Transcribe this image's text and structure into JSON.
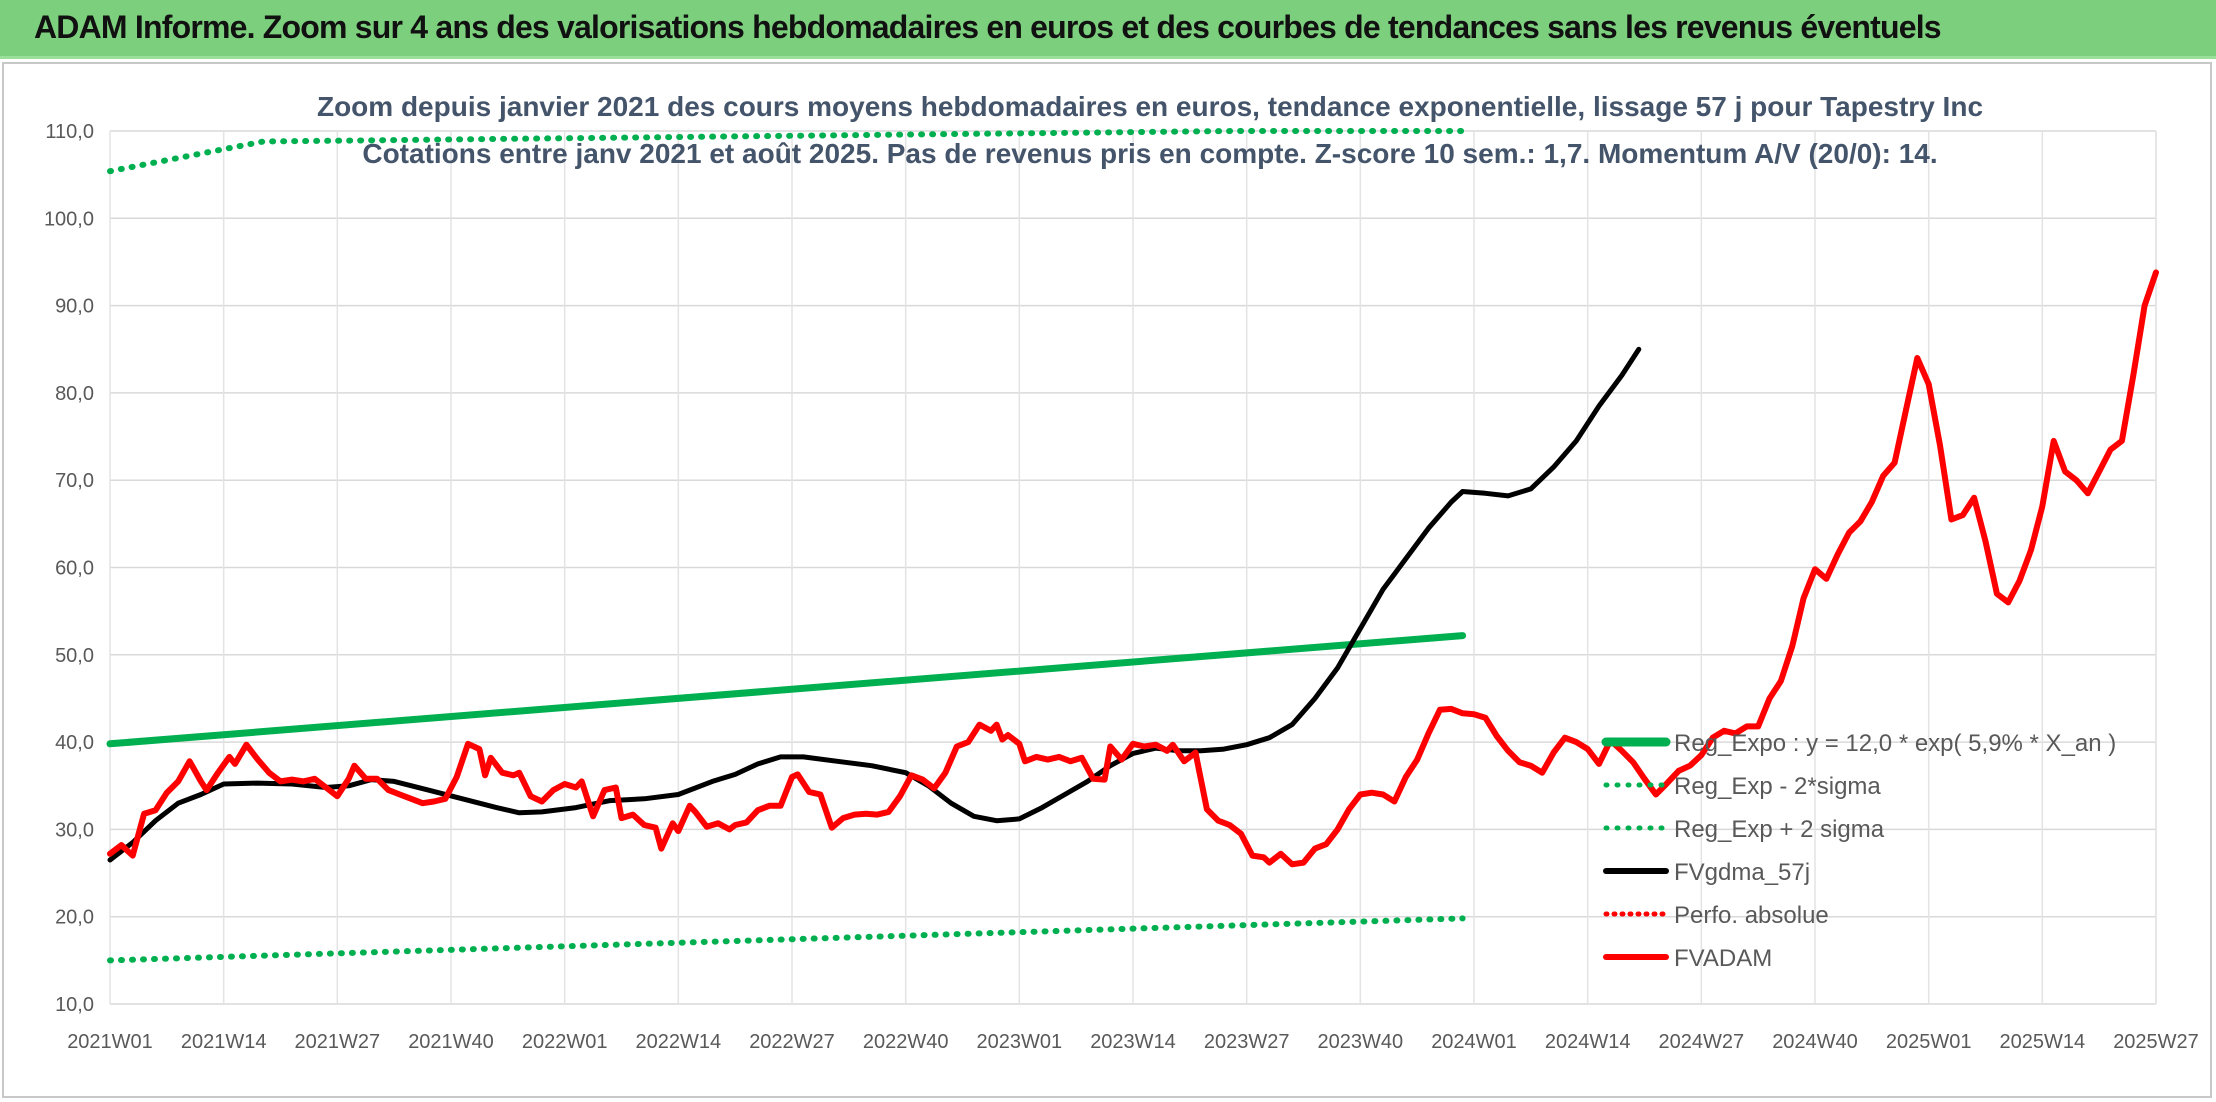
{
  "header": {
    "title": "ADAM Informe. Zoom sur 4 ans des valorisations hebdomadaires en euros et des courbes de tendances sans les revenus éventuels"
  },
  "chart_data": {
    "type": "line",
    "title_line1": "Zoom depuis janvier 2021 des cours moyens hebdomadaires en euros, tendance exponentielle, lissage 57 j pour Tapestry Inc",
    "title_line2": "Cotations entre janv 2021 et août 2025. Pas de revenus pris en compte. Z-score 10 sem.: 1,7. Momentum A/V (20/0): 14.",
    "ylim": [
      10,
      110
    ],
    "yticks": [
      "10,0",
      "20,0",
      "30,0",
      "40,0",
      "50,0",
      "60,0",
      "70,0",
      "80,0",
      "90,0",
      "100,0",
      "110,0"
    ],
    "x_tick_labels": [
      "2021W01",
      "2021W14",
      "2021W27",
      "2021W40",
      "2022W01",
      "2022W14",
      "2022W27",
      "2022W40",
      "2023W01",
      "2023W14",
      "2023W27",
      "2023W40",
      "2024W01",
      "2024W14",
      "2024W27",
      "2024W40",
      "2025W01",
      "2025W14",
      "2025W27"
    ],
    "grid": true,
    "legend_position": "right",
    "colors": {
      "reg_exp": "#00b050",
      "fvgdma": "#000000",
      "perfo": "#ff0000",
      "fvadam": "#ff0000"
    },
    "series": [
      {
        "name": "Reg_Expo : y = 12,0 * exp( 5,9% *  X_an )",
        "style": "solid",
        "points": [
          [
            0,
            39.8
          ],
          [
            238,
            52.2
          ]
        ]
      },
      {
        "name": "Reg_Exp - 2*sigma",
        "style": "dotted",
        "points": [
          [
            0,
            15.0
          ],
          [
            238,
            19.8
          ]
        ]
      },
      {
        "name": "Reg_Exp + 2 sigma",
        "style": "dotted",
        "points": [
          [
            0,
            105.4
          ],
          [
            27,
            108.8
          ],
          [
            198,
            110.0
          ],
          [
            238,
            110.0
          ]
        ]
      },
      {
        "name": "FVgdma_57j",
        "style": "solid",
        "points": [
          [
            0,
            26.5
          ],
          [
            4,
            28.5
          ],
          [
            8,
            31.0
          ],
          [
            12,
            33.0
          ],
          [
            16,
            34.0
          ],
          [
            20,
            35.2
          ],
          [
            26,
            35.3
          ],
          [
            32,
            35.2
          ],
          [
            38,
            34.8
          ],
          [
            42,
            35.0
          ],
          [
            46,
            35.7
          ],
          [
            50,
            35.5
          ],
          [
            56,
            34.5
          ],
          [
            62,
            33.5
          ],
          [
            68,
            32.5
          ],
          [
            72,
            31.9
          ],
          [
            76,
            32.0
          ],
          [
            82,
            32.5
          ],
          [
            88,
            33.3
          ],
          [
            94,
            33.5
          ],
          [
            100,
            34.0
          ],
          [
            106,
            35.5
          ],
          [
            110,
            36.3
          ],
          [
            114,
            37.5
          ],
          [
            118,
            38.3
          ],
          [
            122,
            38.3
          ],
          [
            128,
            37.8
          ],
          [
            134,
            37.3
          ],
          [
            140,
            36.5
          ],
          [
            144,
            35.0
          ],
          [
            148,
            33.0
          ],
          [
            152,
            31.5
          ],
          [
            156,
            31.0
          ],
          [
            160,
            31.2
          ],
          [
            164,
            32.5
          ],
          [
            168,
            34.0
          ],
          [
            172,
            35.5
          ],
          [
            176,
            37.3
          ],
          [
            180,
            38.7
          ],
          [
            184,
            39.3
          ],
          [
            188,
            39.0
          ],
          [
            192,
            39.0
          ],
          [
            196,
            39.2
          ],
          [
            200,
            39.7
          ],
          [
            204,
            40.5
          ],
          [
            208,
            42.0
          ],
          [
            212,
            45.0
          ],
          [
            216,
            48.5
          ],
          [
            220,
            53.0
          ],
          [
            224,
            57.5
          ],
          [
            228,
            61.0
          ],
          [
            232,
            64.5
          ],
          [
            236,
            67.5
          ],
          [
            238,
            68.7
          ],
          [
            242,
            68.5
          ],
          [
            246,
            68.2
          ],
          [
            250,
            69.0
          ],
          [
            254,
            71.5
          ],
          [
            258,
            74.5
          ],
          [
            262,
            78.5
          ],
          [
            266,
            82.0
          ],
          [
            269,
            85.0
          ]
        ]
      },
      {
        "name": "Perfo. absolue",
        "style": "dotted",
        "points": []
      },
      {
        "name": "FVADAM",
        "style": "solid",
        "points": [
          [
            0,
            27.2
          ],
          [
            2,
            28.2
          ],
          [
            4,
            27.0
          ],
          [
            6,
            31.8
          ],
          [
            8,
            32.2
          ],
          [
            10,
            34.2
          ],
          [
            12,
            35.5
          ],
          [
            14,
            37.8
          ],
          [
            16,
            35.5
          ],
          [
            17,
            34.5
          ],
          [
            19,
            36.5
          ],
          [
            21,
            38.3
          ],
          [
            22,
            37.5
          ],
          [
            24,
            39.7
          ],
          [
            26,
            38.0
          ],
          [
            28,
            36.5
          ],
          [
            30,
            35.5
          ],
          [
            32,
            35.7
          ],
          [
            34,
            35.5
          ],
          [
            36,
            35.8
          ],
          [
            38,
            34.8
          ],
          [
            40,
            33.8
          ],
          [
            42,
            35.8
          ],
          [
            43,
            37.3
          ],
          [
            45,
            35.8
          ],
          [
            47,
            35.8
          ],
          [
            49,
            34.5
          ],
          [
            51,
            34.0
          ],
          [
            53,
            33.5
          ],
          [
            55,
            33.0
          ],
          [
            57,
            33.2
          ],
          [
            59,
            33.5
          ],
          [
            61,
            36.0
          ],
          [
            63,
            39.8
          ],
          [
            65,
            39.2
          ],
          [
            66,
            36.2
          ],
          [
            67,
            38.2
          ],
          [
            69,
            36.5
          ],
          [
            71,
            36.2
          ],
          [
            72,
            36.5
          ],
          [
            74,
            33.8
          ],
          [
            76,
            33.2
          ],
          [
            78,
            34.5
          ],
          [
            80,
            35.2
          ],
          [
            82,
            34.8
          ],
          [
            83,
            35.5
          ],
          [
            85,
            31.5
          ],
          [
            87,
            34.5
          ],
          [
            89,
            34.8
          ],
          [
            90,
            31.3
          ],
          [
            92,
            31.7
          ],
          [
            94,
            30.5
          ],
          [
            96,
            30.2
          ],
          [
            97,
            27.8
          ],
          [
            99,
            30.7
          ],
          [
            100,
            29.8
          ],
          [
            102,
            32.7
          ],
          [
            103,
            32.0
          ],
          [
            105,
            30.3
          ],
          [
            107,
            30.7
          ],
          [
            109,
            30.0
          ],
          [
            110,
            30.5
          ],
          [
            112,
            30.8
          ],
          [
            114,
            32.2
          ],
          [
            116,
            32.7
          ],
          [
            118,
            32.7
          ],
          [
            120,
            36.0
          ],
          [
            121,
            36.3
          ],
          [
            123,
            34.3
          ],
          [
            125,
            34.0
          ],
          [
            127,
            30.2
          ],
          [
            129,
            31.3
          ],
          [
            131,
            31.7
          ],
          [
            133,
            31.8
          ],
          [
            135,
            31.7
          ],
          [
            137,
            32.0
          ],
          [
            139,
            33.8
          ],
          [
            141,
            36.2
          ],
          [
            143,
            35.7
          ],
          [
            145,
            34.7
          ],
          [
            147,
            36.5
          ],
          [
            149,
            39.5
          ],
          [
            151,
            40.0
          ],
          [
            153,
            42.0
          ],
          [
            155,
            41.3
          ],
          [
            156,
            42.0
          ],
          [
            157,
            40.3
          ],
          [
            158,
            40.8
          ],
          [
            160,
            39.8
          ],
          [
            161,
            37.8
          ],
          [
            163,
            38.3
          ],
          [
            165,
            38.0
          ],
          [
            167,
            38.3
          ],
          [
            169,
            37.8
          ],
          [
            171,
            38.2
          ],
          [
            173,
            35.8
          ],
          [
            175,
            35.7
          ],
          [
            176,
            39.5
          ],
          [
            178,
            38.0
          ],
          [
            180,
            39.8
          ],
          [
            182,
            39.5
          ],
          [
            184,
            39.7
          ],
          [
            186,
            39.0
          ],
          [
            187,
            39.7
          ],
          [
            189,
            37.8
          ],
          [
            191,
            38.8
          ],
          [
            193,
            32.3
          ],
          [
            195,
            31.0
          ],
          [
            197,
            30.5
          ],
          [
            199,
            29.5
          ],
          [
            201,
            27.0
          ],
          [
            203,
            26.8
          ],
          [
            204,
            26.2
          ],
          [
            206,
            27.2
          ],
          [
            208,
            26.0
          ],
          [
            210,
            26.2
          ],
          [
            212,
            27.8
          ],
          [
            214,
            28.3
          ],
          [
            216,
            30.0
          ],
          [
            218,
            32.3
          ],
          [
            220,
            34.0
          ],
          [
            222,
            34.2
          ],
          [
            224,
            34.0
          ],
          [
            226,
            33.2
          ],
          [
            228,
            36.0
          ],
          [
            230,
            38.0
          ],
          [
            232,
            41.0
          ],
          [
            234,
            43.7
          ],
          [
            236,
            43.8
          ],
          [
            238,
            43.3
          ],
          [
            240,
            43.2
          ],
          [
            242,
            42.8
          ],
          [
            244,
            40.7
          ],
          [
            246,
            39.0
          ],
          [
            248,
            37.7
          ],
          [
            250,
            37.3
          ],
          [
            252,
            36.5
          ],
          [
            254,
            38.8
          ],
          [
            256,
            40.5
          ],
          [
            258,
            40.0
          ],
          [
            260,
            39.2
          ],
          [
            262,
            37.5
          ],
          [
            264,
            40.2
          ],
          [
            266,
            39.0
          ],
          [
            268,
            37.7
          ],
          [
            270,
            35.8
          ],
          [
            272,
            34.0
          ],
          [
            274,
            35.3
          ],
          [
            276,
            36.7
          ],
          [
            278,
            37.3
          ],
          [
            280,
            38.5
          ],
          [
            282,
            40.5
          ],
          [
            284,
            41.3
          ],
          [
            286,
            41.0
          ],
          [
            288,
            41.8
          ],
          [
            290,
            41.8
          ],
          [
            292,
            45.0
          ],
          [
            294,
            47.0
          ],
          [
            296,
            51.0
          ],
          [
            298,
            56.5
          ],
          [
            300,
            59.8
          ],
          [
            302,
            58.7
          ],
          [
            304,
            61.5
          ],
          [
            306,
            64.0
          ],
          [
            308,
            65.3
          ],
          [
            310,
            67.5
          ],
          [
            312,
            70.5
          ],
          [
            314,
            72.0
          ],
          [
            316,
            78.0
          ],
          [
            318,
            84.0
          ],
          [
            320,
            81.0
          ],
          [
            322,
            74.0
          ],
          [
            324,
            65.5
          ],
          [
            326,
            66.0
          ],
          [
            328,
            68.0
          ],
          [
            330,
            63.0
          ],
          [
            332,
            57.0
          ],
          [
            334,
            56.0
          ],
          [
            336,
            58.5
          ],
          [
            338,
            62.0
          ],
          [
            340,
            67.0
          ],
          [
            342,
            74.5
          ],
          [
            344,
            71.0
          ],
          [
            346,
            70.0
          ],
          [
            348,
            68.5
          ],
          [
            350,
            71.0
          ],
          [
            352,
            73.5
          ],
          [
            354,
            74.5
          ],
          [
            356,
            82.0
          ],
          [
            358,
            90.0
          ],
          [
            360,
            93.8
          ]
        ]
      }
    ]
  }
}
